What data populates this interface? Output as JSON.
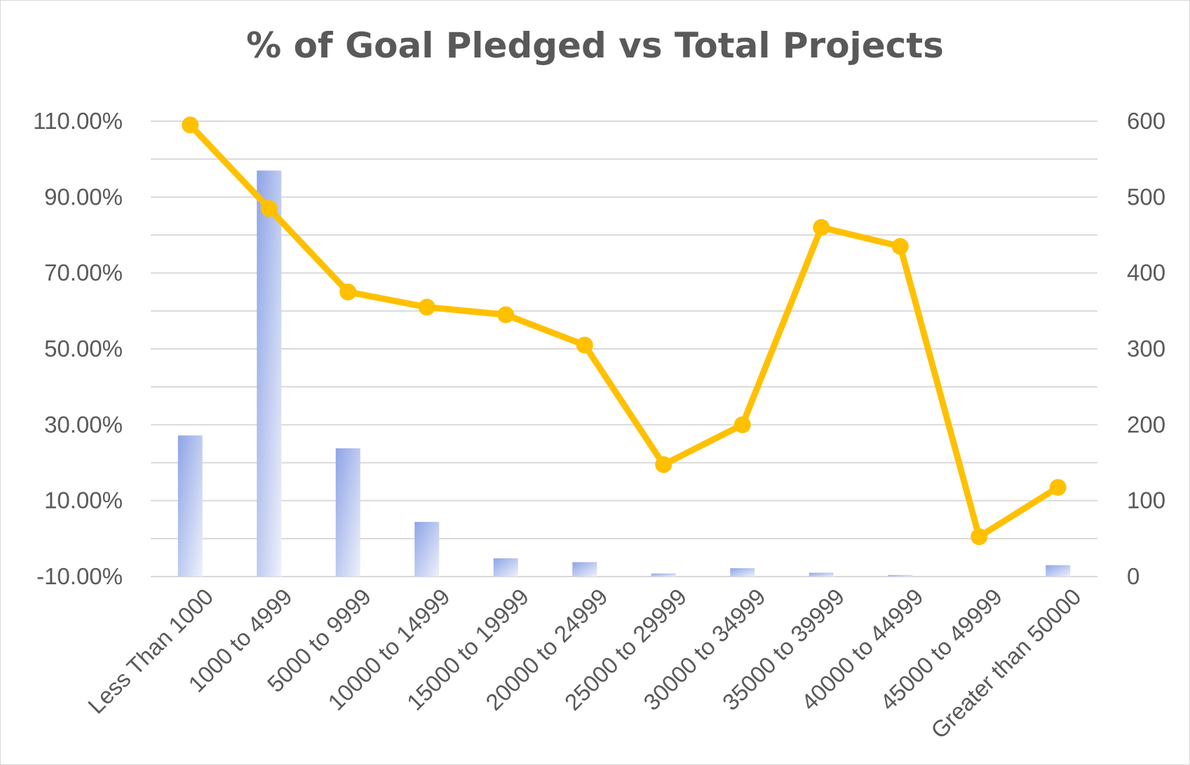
{
  "chart_data": {
    "type": "bar",
    "title": "% of Goal Pledged vs Total Projects",
    "categories": [
      "Less Than 1000",
      "1000 to 4999",
      "5000 to 9999",
      "10000 to 14999",
      "15000 to 19999",
      "20000 to 24999",
      "25000 to 29999",
      "30000 to 34999",
      "35000 to 39999",
      "40000 to 44999",
      "45000 to 49999",
      "Greater than 50000"
    ],
    "series": [
      {
        "type": "bar",
        "axis": "secondary",
        "values": [
          186,
          535,
          169,
          72,
          24,
          19,
          4,
          11,
          5,
          2,
          0,
          15
        ]
      },
      {
        "type": "line",
        "axis": "primary",
        "values": [
          109.0,
          87.0,
          65.0,
          61.0,
          59.0,
          51.0,
          19.5,
          30.0,
          82.0,
          77.0,
          0.5,
          13.5
        ]
      }
    ],
    "y_primary": {
      "min": -10,
      "max": 110,
      "step": 20,
      "ticks": [
        "-10.00%",
        "10.00%",
        "30.00%",
        "50.00%",
        "70.00%",
        "90.00%",
        "110.00%"
      ]
    },
    "y_secondary": {
      "min": 0,
      "max": 600,
      "step": 100,
      "ticks": [
        "0",
        "100",
        "200",
        "300",
        "400",
        "500",
        "600"
      ]
    },
    "grid": true,
    "legend": "none",
    "colors": {
      "bar": "#8faadc",
      "line": "#ffc000",
      "grid": "#d9d9d9",
      "text": "#595959"
    }
  }
}
